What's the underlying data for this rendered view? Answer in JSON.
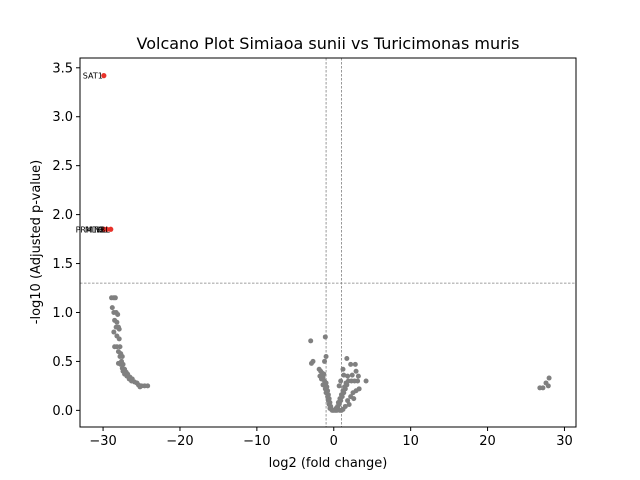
{
  "chart_data": {
    "type": "scatter",
    "title": "Volcano Plot Simiaoa sunii vs Turicimonas muris",
    "xlabel": "log2 (fold change)",
    "ylabel": "-log10 (Adjusted p-value)",
    "xlim": [
      -33,
      31.5
    ],
    "ylim": [
      -0.17,
      3.6
    ],
    "xticks": [
      -30,
      -20,
      -10,
      0,
      10,
      20,
      30
    ],
    "xtick_labels": [
      "−30",
      "−20",
      "−10",
      "0",
      "10",
      "20",
      "30"
    ],
    "yticks": [
      0.0,
      0.5,
      1.0,
      1.5,
      2.0,
      2.5,
      3.0,
      3.5
    ],
    "ytick_labels": [
      "0.0",
      "0.5",
      "1.0",
      "1.5",
      "2.0",
      "2.5",
      "3.0",
      "3.5"
    ],
    "thresholds": {
      "x": [
        -1,
        1
      ],
      "y": 1.3
    },
    "grid": false,
    "colors": {
      "significant": "#e8322a",
      "not_significant": "#808080",
      "threshold": "#808080"
    },
    "significant": [
      {
        "label": "SAT1",
        "x": -29.9,
        "y": 3.42
      },
      {
        "label": "PRMT8",
        "x": -29.9,
        "y": 1.85
      },
      {
        "label": "MLKL",
        "x": -29.5,
        "y": 1.85
      },
      {
        "label": "NBL",
        "x": -29.0,
        "y": 1.85
      }
    ],
    "not_significant": [
      [
        -28.9,
        1.15
      ],
      [
        -28.6,
        1.15
      ],
      [
        -28.4,
        1.15
      ],
      [
        -28.8,
        1.05
      ],
      [
        -28.6,
        1.0
      ],
      [
        -28.3,
        1.0
      ],
      [
        -28.1,
        0.98
      ],
      [
        -28.5,
        0.92
      ],
      [
        -28.2,
        0.9
      ],
      [
        -28.3,
        0.85
      ],
      [
        -28.0,
        0.85
      ],
      [
        -27.9,
        0.83
      ],
      [
        -28.6,
        0.8
      ],
      [
        -28.2,
        0.76
      ],
      [
        -27.9,
        0.73
      ],
      [
        -28.5,
        0.65
      ],
      [
        -28.2,
        0.65
      ],
      [
        -27.8,
        0.65
      ],
      [
        -28.0,
        0.6
      ],
      [
        -27.7,
        0.58
      ],
      [
        -27.8,
        0.55
      ],
      [
        -27.5,
        0.55
      ],
      [
        -27.6,
        0.5
      ],
      [
        -28.0,
        0.48
      ],
      [
        -27.7,
        0.47
      ],
      [
        -27.4,
        0.47
      ],
      [
        -27.5,
        0.43
      ],
      [
        -27.2,
        0.42
      ],
      [
        -27.4,
        0.4
      ],
      [
        -27.0,
        0.39
      ],
      [
        -27.2,
        0.37
      ],
      [
        -26.8,
        0.37
      ],
      [
        -26.9,
        0.35
      ],
      [
        -26.5,
        0.34
      ],
      [
        -26.6,
        0.32
      ],
      [
        -26.2,
        0.32
      ],
      [
        -26.3,
        0.3
      ],
      [
        -25.9,
        0.29
      ],
      [
        -25.6,
        0.28
      ],
      [
        -25.4,
        0.26
      ],
      [
        -25.0,
        0.25
      ],
      [
        -24.6,
        0.25
      ],
      [
        -24.2,
        0.25
      ],
      [
        -25.2,
        0.24
      ],
      [
        -3.0,
        0.71
      ],
      [
        -2.7,
        0.5
      ],
      [
        -2.9,
        0.48
      ],
      [
        -1.1,
        0.75
      ],
      [
        -1.0,
        0.55
      ],
      [
        -1.2,
        0.5
      ],
      [
        -1.9,
        0.42
      ],
      [
        -1.7,
        0.4
      ],
      [
        -1.5,
        0.38
      ],
      [
        -1.3,
        0.37
      ],
      [
        -1.8,
        0.35
      ],
      [
        -1.4,
        0.34
      ],
      [
        -1.6,
        0.32
      ],
      [
        -1.2,
        0.3
      ],
      [
        -1.0,
        0.28
      ],
      [
        -1.4,
        0.26
      ],
      [
        -0.9,
        0.24
      ],
      [
        -1.1,
        0.22
      ],
      [
        -0.8,
        0.2
      ],
      [
        -1.0,
        0.18
      ],
      [
        -0.7,
        0.16
      ],
      [
        -0.8,
        0.14
      ],
      [
        -0.6,
        0.12
      ],
      [
        -0.7,
        0.1
      ],
      [
        -0.5,
        0.08
      ],
      [
        -0.6,
        0.06
      ],
      [
        -0.4,
        0.04
      ],
      [
        -0.5,
        0.02
      ],
      [
        -0.3,
        0.01
      ],
      [
        -0.2,
        0.0
      ],
      [
        0.0,
        0.0
      ],
      [
        0.2,
        0.0
      ],
      [
        0.4,
        0.0
      ],
      [
        0.6,
        0.01
      ],
      [
        0.8,
        0.0
      ],
      [
        1.0,
        0.0
      ],
      [
        1.2,
        0.01
      ],
      [
        0.3,
        0.02
      ],
      [
        0.5,
        0.04
      ],
      [
        0.7,
        0.06
      ],
      [
        0.6,
        0.08
      ],
      [
        0.9,
        0.1
      ],
      [
        0.8,
        0.12
      ],
      [
        1.1,
        0.14
      ],
      [
        1.0,
        0.16
      ],
      [
        1.3,
        0.18
      ],
      [
        1.2,
        0.2
      ],
      [
        1.5,
        0.22
      ],
      [
        1.4,
        0.24
      ],
      [
        1.7,
        0.26
      ],
      [
        1.6,
        0.28
      ],
      [
        1.9,
        0.3
      ],
      [
        2.3,
        0.3
      ],
      [
        2.7,
        0.3
      ],
      [
        3.1,
        0.3
      ],
      [
        3.3,
        0.22
      ],
      [
        2.9,
        0.2
      ],
      [
        2.5,
        0.18
      ],
      [
        2.2,
        0.14
      ],
      [
        2.6,
        0.12
      ],
      [
        1.8,
        0.1
      ],
      [
        2.0,
        0.06
      ],
      [
        1.5,
        0.04
      ],
      [
        1.3,
        0.36
      ],
      [
        1.8,
        0.35
      ],
      [
        2.4,
        0.36
      ],
      [
        1.2,
        0.42
      ],
      [
        2.2,
        0.47
      ],
      [
        2.8,
        0.47
      ],
      [
        1.7,
        0.53
      ],
      [
        3.2,
        0.35
      ],
      [
        4.2,
        0.3
      ],
      [
        0.9,
        0.3
      ],
      [
        0.7,
        0.25
      ],
      [
        2.9,
        0.4
      ],
      [
        26.8,
        0.23
      ],
      [
        27.2,
        0.23
      ],
      [
        27.6,
        0.28
      ],
      [
        28.0,
        0.33
      ],
      [
        27.9,
        0.25
      ]
    ]
  }
}
